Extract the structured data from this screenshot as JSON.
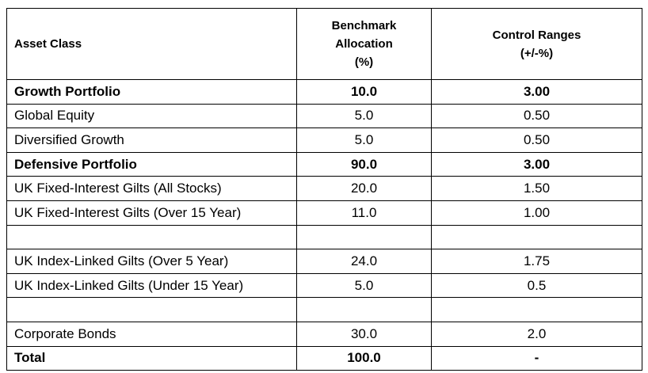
{
  "headers": {
    "asset_class": "Asset Class",
    "benchmark": [
      "Benchmark",
      "Allocation",
      "(%)"
    ],
    "control": [
      "Control Ranges",
      "(+/-%)"
    ]
  },
  "rows": [
    {
      "label": "Growth Portfolio",
      "allocation": "10.0",
      "range": "3.00",
      "bold": true
    },
    {
      "label": "Global Equity",
      "allocation": "5.0",
      "range": "0.50",
      "bold": false
    },
    {
      "label": "Diversified Growth",
      "allocation": "5.0",
      "range": "0.50",
      "bold": false
    },
    {
      "label": "Defensive Portfolio",
      "allocation": "90.0",
      "range": "3.00",
      "bold": true
    },
    {
      "label": "UK Fixed-Interest Gilts (All Stocks)",
      "allocation": "20.0",
      "range": "1.50",
      "bold": false
    },
    {
      "label": "UK Fixed-Interest Gilts (Over 15 Year)",
      "allocation": "11.0",
      "range": "1.00",
      "bold": false
    },
    {
      "label": "",
      "allocation": "",
      "range": "",
      "bold": false
    },
    {
      "label": "UK Index-Linked Gilts  (Over 5 Year)",
      "allocation": "24.0",
      "range": "1.75",
      "bold": false
    },
    {
      "label": "UK Index-Linked Gilts (Under 15 Year)",
      "allocation": "5.0",
      "range": "0.5",
      "bold": false
    },
    {
      "label": "",
      "allocation": "",
      "range": "",
      "bold": false
    },
    {
      "label": "Corporate Bonds",
      "allocation": "30.0",
      "range": "2.0",
      "bold": false
    },
    {
      "label": "Total",
      "allocation": "100.0",
      "range": "-",
      "bold": true
    }
  ]
}
